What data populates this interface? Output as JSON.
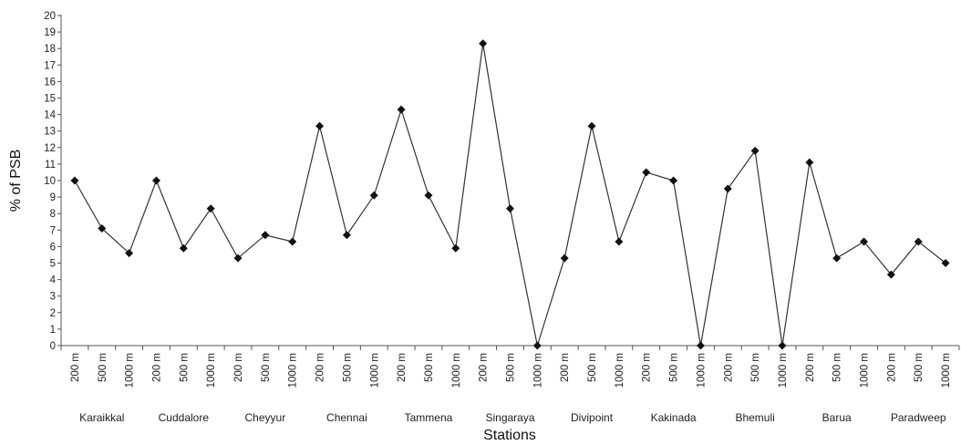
{
  "chart_data": {
    "type": "line",
    "xlabel": "Stations",
    "ylabel": "% of PSB",
    "ylim": [
      0,
      20
    ],
    "yticks": [
      0,
      1,
      2,
      3,
      4,
      5,
      6,
      7,
      8,
      9,
      10,
      11,
      12,
      13,
      14,
      15,
      16,
      17,
      18,
      19,
      20
    ],
    "grid": false,
    "legend": "none",
    "line_color": "#333333",
    "marker": "diamond",
    "stations": [
      "Karaikkal",
      "Cuddalore",
      "Cheyyur",
      "Chennai",
      "Tammena",
      "Singaraya",
      "Divipoint",
      "Kakinada",
      "Bhemuli",
      "Barua",
      "Paradweep"
    ],
    "depths": [
      "200 m",
      "500 m",
      "1000 m"
    ],
    "categories": [
      "200 m",
      "500 m",
      "1000 m",
      "200 m",
      "500 m",
      "1000 m",
      "200 m",
      "500 m",
      "1000 m",
      "200 m",
      "500 m",
      "1000 m",
      "200 m",
      "500 m",
      "1000 m",
      "200 m",
      "500 m",
      "1000 m",
      "200 m",
      "500 m",
      "1000 m",
      "200 m",
      "500 m",
      "1000 m",
      "200 m",
      "500 m",
      "1000 m",
      "200 m",
      "500 m",
      "1000 m",
      "200 m",
      "500 m",
      "1000 m"
    ],
    "series": [
      {
        "values": [
          10,
          7.1,
          5.6,
          10,
          5.9,
          8.3,
          5.3,
          6.7,
          6.3,
          13.3,
          6.7,
          9.1,
          14.3,
          9.1,
          5.9,
          18.3,
          8.3,
          0,
          5.3,
          13.3,
          6.3,
          10.5,
          10,
          0,
          9.5,
          11.8,
          0,
          11.1,
          5.3,
          6.3,
          4.3,
          6.3,
          5
        ]
      }
    ]
  }
}
